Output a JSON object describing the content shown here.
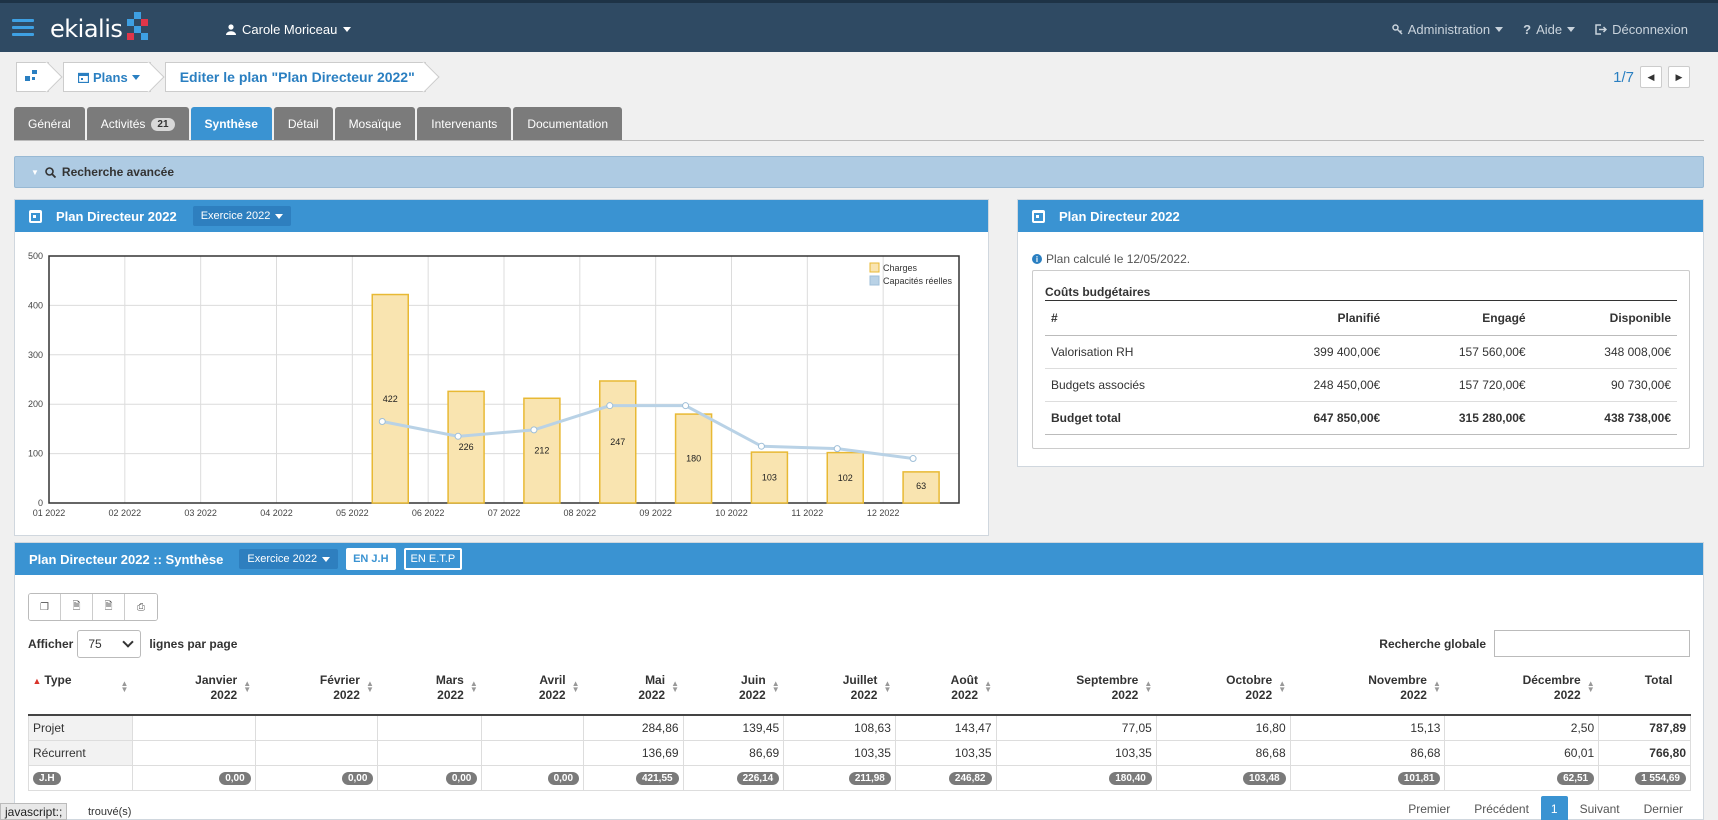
{
  "navbar": {
    "logo": "ekialis",
    "user": "Carole Moriceau",
    "administration": "Administration",
    "help": "Aide",
    "logout": "Déconnexion"
  },
  "breadcrumb": {
    "plans": "Plans",
    "current": "Editer le plan \"Plan Directeur 2022\""
  },
  "record_pager": {
    "position": "1/7"
  },
  "tabs": [
    {
      "label": "Général"
    },
    {
      "label": "Activités",
      "badge": "21"
    },
    {
      "label": "Synthèse"
    },
    {
      "label": "Détail"
    },
    {
      "label": "Mosaïque"
    },
    {
      "label": "Intervenants"
    },
    {
      "label": "Documentation"
    }
  ],
  "advanced_search": {
    "label": "Recherche avancée"
  },
  "chart_panel": {
    "title": "Plan Directeur 2022",
    "exercise": "Exercice 2022"
  },
  "chart_data": {
    "type": "bar",
    "categories": [
      "01 2022",
      "02 2022",
      "03 2022",
      "04 2022",
      "05 2022",
      "06 2022",
      "07 2022",
      "08 2022",
      "09 2022",
      "10 2022",
      "11 2022",
      "12 2022"
    ],
    "series": [
      {
        "name": "Charges",
        "type": "bar",
        "values": [
          0,
          0,
          0,
          0,
          422,
          226,
          212,
          247,
          180,
          103,
          102,
          63
        ],
        "labels": [
          "",
          "",
          "",
          "",
          "422",
          "226",
          "212",
          "247",
          "180",
          "103",
          "102",
          "63"
        ]
      },
      {
        "name": "Capacités réelles",
        "type": "line",
        "values": [
          null,
          null,
          null,
          null,
          165,
          135,
          148,
          197,
          197,
          115,
          110,
          90
        ]
      }
    ],
    "ylim": [
      0,
      500
    ],
    "yticks": [
      "0",
      "100",
      "200",
      "300",
      "400",
      "500"
    ],
    "grid": true,
    "legend": "top-right",
    "colors": {
      "bar_fill": "#f9e4b0",
      "bar_stroke": "#e8b934",
      "line": "#b9d2e6"
    }
  },
  "info_panel": {
    "title": "Plan Directeur 2022",
    "computed": "Plan calculé le 12/05/2022.",
    "budget_title": "Coûts budgétaires",
    "columns": [
      "#",
      "Planifié",
      "Engagé",
      "Disponible"
    ],
    "rows": [
      [
        "Valorisation RH",
        "399 400,00€",
        "157 560,00€",
        "348 008,00€"
      ],
      [
        "Budgets associés",
        "248 450,00€",
        "157 720,00€",
        "90 730,00€"
      ]
    ],
    "total": [
      "Budget total",
      "647 850,00€",
      "315 280,00€",
      "438 738,00€"
    ]
  },
  "synth_panel": {
    "title": "Plan Directeur 2022 :: Synthèse",
    "exercise": "Exercice 2022",
    "unit_jh": "EN J.H",
    "unit_etp": "EN E.T.P",
    "show_label": "Afficher",
    "page_size": "75",
    "per_page_label": "lignes par page",
    "global_search": "Recherche globale",
    "columns": [
      {
        "l1": "Type",
        "l2": ""
      },
      {
        "l1": "Janvier",
        "l2": "2022"
      },
      {
        "l1": "Février",
        "l2": "2022"
      },
      {
        "l1": "Mars",
        "l2": "2022"
      },
      {
        "l1": "Avril",
        "l2": "2022"
      },
      {
        "l1": "Mai",
        "l2": "2022"
      },
      {
        "l1": "Juin",
        "l2": "2022"
      },
      {
        "l1": "Juillet",
        "l2": "2022"
      },
      {
        "l1": "Août",
        "l2": "2022"
      },
      {
        "l1": "Septembre",
        "l2": "2022"
      },
      {
        "l1": "Octobre",
        "l2": "2022"
      },
      {
        "l1": "Novembre",
        "l2": "2022"
      },
      {
        "l1": "Décembre",
        "l2": "2022"
      },
      {
        "l1": "Total",
        "l2": ""
      }
    ],
    "rows": [
      [
        "Projet",
        "",
        "",
        "",
        "",
        "284,86",
        "139,45",
        "108,63",
        "143,47",
        "77,05",
        "16,80",
        "15,13",
        "2,50",
        "787,89"
      ],
      [
        "Récurrent",
        "",
        "",
        "",
        "",
        "136,69",
        "86,69",
        "103,35",
        "103,35",
        "103,35",
        "86,68",
        "86,68",
        "60,01",
        "766,80"
      ]
    ],
    "footer": [
      "J.H",
      "0,00",
      "0,00",
      "0,00",
      "0,00",
      "421,55",
      "226,14",
      "211,98",
      "246,82",
      "180,40",
      "103,48",
      "101,81",
      "62,51",
      "1 554,69"
    ],
    "found": "trouvé(s)",
    "pagination": {
      "first": "Premier",
      "prev": "Précédent",
      "page": "1",
      "next": "Suivant",
      "last": "Dernier"
    }
  },
  "statusbar": "javascript:;"
}
